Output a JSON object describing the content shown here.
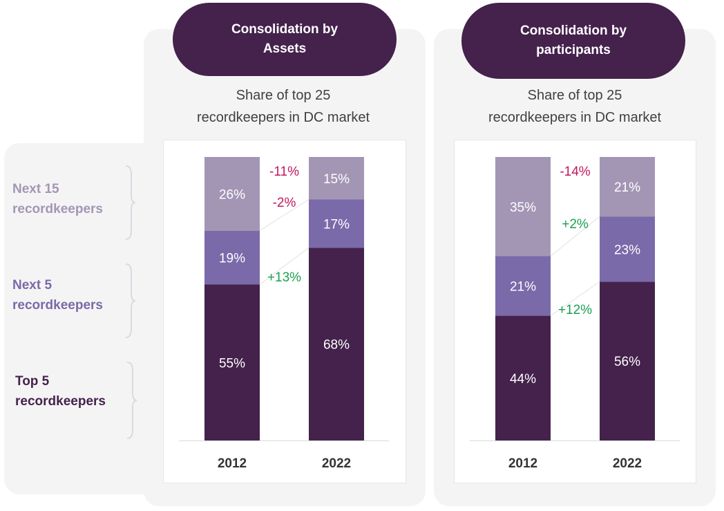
{
  "legend": [
    {
      "label_line1": "Next 15",
      "label_line2": "recordkeepers",
      "color": "#a396b5"
    },
    {
      "label_line1": "Next 5",
      "label_line2": "recordkeepers",
      "color": "#7a6aa9"
    },
    {
      "label_line1": "Top 5",
      "label_line2": "recordkeepers",
      "color": "#44224c"
    }
  ],
  "colors": {
    "top5": "#44224c",
    "next5": "#7a6aa9",
    "next15": "#a396b5",
    "negative": "#c0185f",
    "positive": "#1aa052"
  },
  "chart_data": [
    {
      "type": "bar",
      "stacked": true,
      "header_line1": "Consolidation by",
      "header_line2": "Assets",
      "title_line1": "Share of top 25",
      "title_line2": "recordkeepers in DC market",
      "categories": [
        "2012",
        "2022"
      ],
      "ylim": [
        0,
        100
      ],
      "series": [
        {
          "key": "top5",
          "values": [
            55,
            68
          ],
          "labels": [
            "55%",
            "68%"
          ]
        },
        {
          "key": "next5",
          "values": [
            19,
            17
          ],
          "labels": [
            "19%",
            "17%"
          ]
        },
        {
          "key": "next15",
          "values": [
            26,
            15
          ],
          "labels": [
            "26%",
            "15%"
          ]
        }
      ],
      "changes": [
        {
          "key": "next15",
          "label": "-11%",
          "sign": "negative"
        },
        {
          "key": "next5",
          "label": "-2%",
          "sign": "negative"
        },
        {
          "key": "top5",
          "label": "+13%",
          "sign": "positive"
        }
      ]
    },
    {
      "type": "bar",
      "stacked": true,
      "header_line1": "Consolidation by",
      "header_line2": "participants",
      "title_line1": "Share of top 25",
      "title_line2": "recordkeepers in DC market",
      "categories": [
        "2012",
        "2022"
      ],
      "ylim": [
        0,
        100
      ],
      "series": [
        {
          "key": "top5",
          "values": [
            44,
            56
          ],
          "labels": [
            "44%",
            "56%"
          ]
        },
        {
          "key": "next5",
          "values": [
            21,
            23
          ],
          "labels": [
            "21%",
            "23%"
          ]
        },
        {
          "key": "next15",
          "values": [
            35,
            21
          ],
          "labels": [
            "35%",
            "21%"
          ]
        }
      ],
      "changes": [
        {
          "key": "next15",
          "label": "-14%",
          "sign": "negative"
        },
        {
          "key": "next5",
          "label": "+2%",
          "sign": "positive"
        },
        {
          "key": "top5",
          "label": "+12%",
          "sign": "positive"
        }
      ]
    }
  ]
}
